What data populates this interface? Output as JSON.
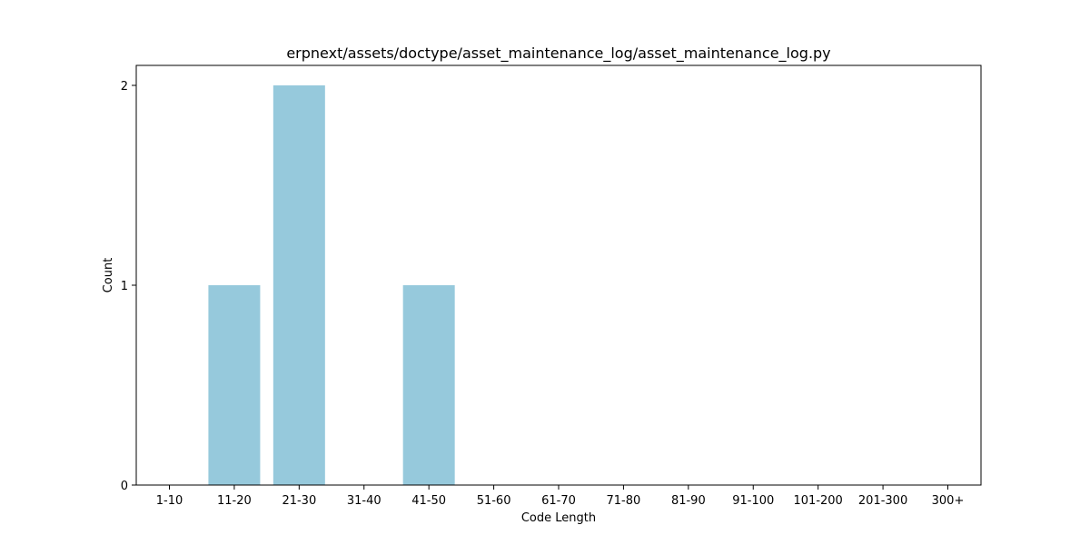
{
  "chart_data": {
    "type": "bar",
    "title": "erpnext/assets/doctype/asset_maintenance_log/asset_maintenance_log.py",
    "xlabel": "Code Length",
    "ylabel": "Count",
    "categories": [
      "1-10",
      "11-20",
      "21-30",
      "31-40",
      "41-50",
      "51-60",
      "61-70",
      "71-80",
      "81-90",
      "91-100",
      "101-200",
      "201-300",
      "300+"
    ],
    "values": [
      0,
      1,
      2,
      0,
      1,
      0,
      0,
      0,
      0,
      0,
      0,
      0,
      0
    ],
    "yticks": [
      0,
      1,
      2
    ],
    "ylim": [
      0,
      2.1
    ],
    "grid": false,
    "bar_color": "#96c9dc"
  }
}
